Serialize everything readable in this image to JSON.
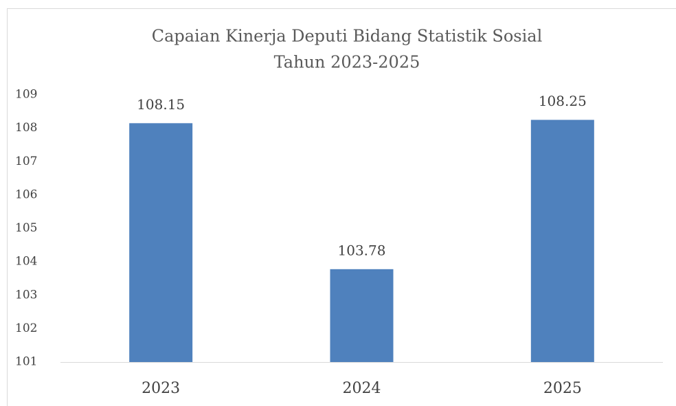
{
  "chart_data": {
    "type": "bar",
    "title": [
      "Capaian Kinerja Deputi Bidang Statistik Sosial",
      "Tahun 2023-2025"
    ],
    "categories": [
      "2023",
      "2024",
      "2025"
    ],
    "values": [
      108.15,
      103.78,
      108.25
    ],
    "color": "#4f81bd",
    "ylim": [
      101,
      109
    ],
    "yticks": [
      101,
      102,
      103,
      104,
      105,
      106,
      107,
      108,
      109
    ],
    "grid": false
  }
}
